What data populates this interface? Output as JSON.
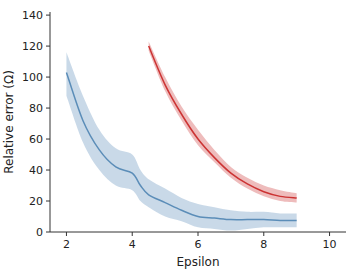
{
  "chart_data": {
    "type": "line",
    "x_label": "Epsilon",
    "y_label": "Relative error (Ω)",
    "xlim": [
      1.5,
      10.5
    ],
    "ylim": [
      0,
      142
    ],
    "xticks": [
      2,
      4,
      6,
      8,
      10
    ],
    "yticks": [
      0,
      20,
      40,
      60,
      80,
      100,
      120,
      140
    ],
    "series": [
      {
        "color": "#5B8DB8",
        "x": [
          2.0,
          2.5,
          3.0,
          3.5,
          4.0,
          4.25,
          4.5,
          5.0,
          5.5,
          6.0,
          6.5,
          7.0,
          7.5,
          8.0,
          8.5,
          9.0
        ],
        "values": [
          103,
          72,
          53,
          42,
          38,
          30,
          24,
          19,
          14,
          10,
          9,
          8,
          8,
          8,
          7.5,
          7.5
        ],
        "lower": [
          88,
          58,
          40,
          30,
          27,
          20,
          16,
          10,
          7,
          3,
          2,
          1,
          2,
          3,
          3,
          3
        ],
        "upper": [
          116,
          88,
          66,
          54,
          50,
          40,
          34,
          28,
          22,
          18,
          16,
          14,
          13,
          13,
          12,
          12
        ]
      },
      {
        "color": "#CC3333",
        "x": [
          4.5,
          5.0,
          5.5,
          6.0,
          6.5,
          7.0,
          7.5,
          8.0,
          8.5,
          9.0
        ],
        "values": [
          120,
          95,
          76,
          60,
          48,
          38,
          31,
          26,
          23,
          22
        ],
        "lower": [
          117,
          91,
          72,
          56,
          45,
          35,
          28,
          23,
          20,
          19
        ],
        "upper": [
          123,
          100,
          81,
          66,
          53,
          42,
          35,
          30,
          27,
          25
        ]
      }
    ]
  }
}
